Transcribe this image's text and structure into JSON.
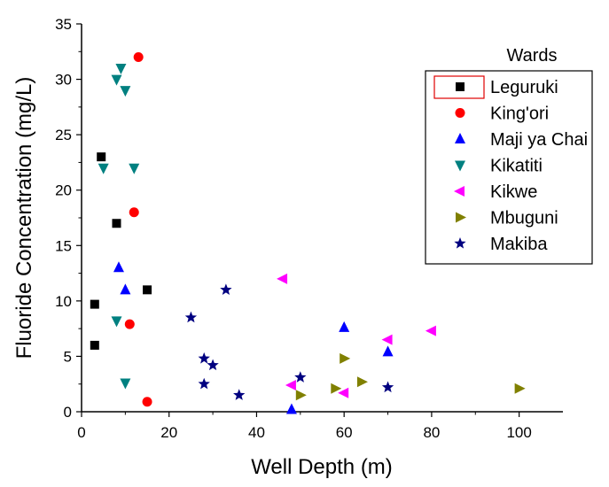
{
  "chart_data": {
    "type": "scatter",
    "title": "",
    "xlabel": "Well Depth (m)",
    "ylabel": "Fluoride Concentration (mg/L)",
    "xlim": [
      0,
      110
    ],
    "ylim": [
      0,
      35
    ],
    "x_ticks": [
      0,
      20,
      40,
      60,
      80,
      100
    ],
    "y_ticks": [
      0,
      5,
      10,
      15,
      20,
      25,
      30,
      35
    ],
    "grid": false,
    "legend": {
      "title": "Wards",
      "placement": "right"
    },
    "series": [
      {
        "name": "Leguruki",
        "marker": "square",
        "color": "#000000",
        "points": [
          [
            3,
            6.0
          ],
          [
            3,
            9.7
          ],
          [
            4.5,
            23.0
          ],
          [
            8,
            17.0
          ],
          [
            15,
            11.0
          ]
        ]
      },
      {
        "name": "King'ori",
        "marker": "circle",
        "color": "#ff0000",
        "points": [
          [
            13,
            32.0
          ],
          [
            12,
            18.0
          ],
          [
            11,
            7.9
          ],
          [
            15,
            0.9
          ]
        ]
      },
      {
        "name": "Maji ya Chai",
        "marker": "triangle-up",
        "color": "#0000ff",
        "points": [
          [
            8.5,
            13.0
          ],
          [
            10,
            11.0
          ],
          [
            48,
            0.2
          ],
          [
            60,
            7.6
          ],
          [
            70,
            5.4
          ]
        ]
      },
      {
        "name": "Kikatiti",
        "marker": "triangle-down",
        "color": "#008080",
        "points": [
          [
            9,
            31.0
          ],
          [
            8,
            30.0
          ],
          [
            10,
            29.0
          ],
          [
            5,
            22.0
          ],
          [
            12,
            22.0
          ],
          [
            8,
            8.2
          ],
          [
            10,
            2.6
          ]
        ]
      },
      {
        "name": "Kikwe",
        "marker": "triangle-left",
        "color": "#ff00ff",
        "points": [
          [
            46,
            12.0
          ],
          [
            48,
            2.4
          ],
          [
            60,
            1.7
          ],
          [
            70,
            6.5
          ],
          [
            80,
            7.3
          ]
        ]
      },
      {
        "name": "Mbuguni",
        "marker": "triangle-right",
        "color": "#808000",
        "points": [
          [
            50,
            1.5
          ],
          [
            58,
            2.1
          ],
          [
            60,
            4.8
          ],
          [
            64,
            2.7
          ],
          [
            100,
            2.1
          ]
        ]
      },
      {
        "name": "Makiba",
        "marker": "star",
        "color": "#000080",
        "points": [
          [
            25,
            8.5
          ],
          [
            33,
            11.0
          ],
          [
            28,
            4.8
          ],
          [
            30,
            4.2
          ],
          [
            28,
            2.5
          ],
          [
            36,
            1.5
          ],
          [
            50,
            3.1
          ],
          [
            70,
            2.2
          ]
        ]
      }
    ]
  }
}
